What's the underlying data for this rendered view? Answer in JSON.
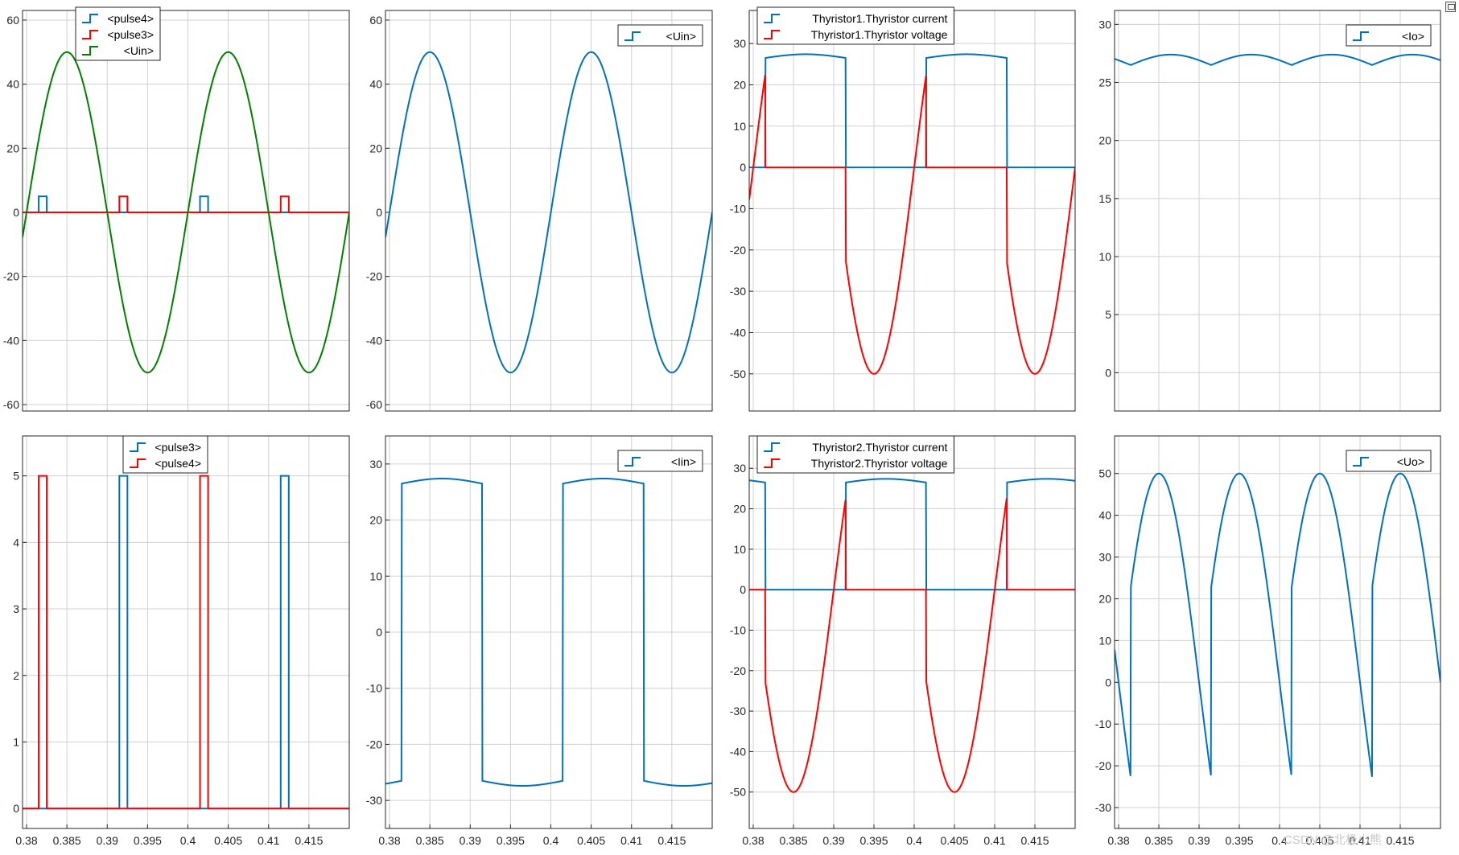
{
  "window": {
    "watermark": "CSDN @北极小熊"
  },
  "colors": {
    "blue": "#0072BD",
    "red": "#FF0000",
    "green": "#008000",
    "grid": "#d0d0d0",
    "axis": "#262626"
  },
  "chart_data": [
    {
      "id": "p1",
      "type": "line",
      "xlim": [
        0.3795,
        0.42
      ],
      "ylim": [
        -62,
        63
      ],
      "yticks": [
        -60,
        -40,
        -20,
        0,
        20,
        40,
        60
      ],
      "ytick_labels": [
        "-60",
        "-40",
        "-20",
        "0",
        "20",
        "40",
        "60"
      ],
      "grid": true,
      "legend_position": "top-left",
      "series": [
        {
          "name": "<pulse4>",
          "color": "blue",
          "kind": "pulse",
          "width": 0.001,
          "starts": [
            0.3815,
            0.4015
          ],
          "amp": 5
        },
        {
          "name": "<pulse3>",
          "color": "red",
          "kind": "pulse",
          "width": 0.001,
          "starts": [
            0.3915,
            0.4115
          ],
          "amp": 5
        },
        {
          "name": "<Uin>",
          "color": "green",
          "kind": "sine",
          "amp": 50,
          "freq": 50,
          "period": 0.02
        }
      ]
    },
    {
      "id": "p2",
      "type": "line",
      "xlim": [
        0.3795,
        0.42
      ],
      "ylim": [
        -62,
        63
      ],
      "yticks": [
        -60,
        -40,
        -20,
        0,
        20,
        40,
        60
      ],
      "ytick_labels": [
        "-60",
        "-40",
        "-20",
        "0",
        "20",
        "40",
        "60"
      ],
      "grid": true,
      "legend_position": "top-right",
      "series": [
        {
          "name": "<Uin>",
          "color": "blue",
          "kind": "sine",
          "amp": 50,
          "freq": 50
        }
      ]
    },
    {
      "id": "p3",
      "type": "line",
      "xlim": [
        0.3795,
        0.42
      ],
      "ylim": [
        -59,
        38
      ],
      "yticks": [
        -50,
        -40,
        -30,
        -20,
        -10,
        0,
        10,
        20,
        30
      ],
      "ytick_labels": [
        "-50",
        "-40",
        "-30",
        "-20",
        "-10",
        "0",
        "10",
        "20",
        "30"
      ],
      "grid": true,
      "legend_position": "top-left",
      "series": [
        {
          "name": "Thyristor1.Thyristor current",
          "color": "blue",
          "kind": "thy_current",
          "phase": 0
        },
        {
          "name": "Thyristor1.Thyristor voltage",
          "color": "red",
          "kind": "thy_voltage",
          "phase": 0
        }
      ]
    },
    {
      "id": "p4",
      "type": "line",
      "xlim": [
        0.3795,
        0.42
      ],
      "ylim": [
        -3.3,
        31.2
      ],
      "yticks": [
        0,
        5,
        10,
        15,
        20,
        25,
        30
      ],
      "ytick_labels": [
        "0",
        "5",
        "10",
        "15",
        "20",
        "25",
        "30"
      ],
      "grid": true,
      "legend_position": "top-right",
      "series": [
        {
          "name": "<Io>",
          "color": "blue",
          "kind": "io"
        }
      ]
    },
    {
      "id": "p5",
      "type": "line",
      "xlim": [
        0.3795,
        0.42
      ],
      "ylim": [
        -0.3,
        5.6
      ],
      "yticks": [
        0,
        1,
        2,
        3,
        4,
        5
      ],
      "ytick_labels": [
        "0",
        "1",
        "2",
        "3",
        "4",
        "5"
      ],
      "xticks": [
        0.38,
        0.385,
        0.39,
        0.395,
        0.4,
        0.405,
        0.41,
        0.415
      ],
      "xtick_labels": [
        "0.38",
        "0.385",
        "0.39",
        "0.395",
        "0.4",
        "0.405",
        "0.41",
        "0.415"
      ],
      "grid": true,
      "legend_position": "top-center",
      "series": [
        {
          "name": "<pulse3>",
          "color": "blue",
          "kind": "pulse",
          "width": 0.001,
          "starts": [
            0.3915,
            0.4115
          ],
          "amp": 5
        },
        {
          "name": "<pulse4>",
          "color": "red",
          "kind": "pulse",
          "width": 0.001,
          "starts": [
            0.3815,
            0.4015
          ],
          "amp": 5
        }
      ]
    },
    {
      "id": "p6",
      "type": "line",
      "xlim": [
        0.3795,
        0.42
      ],
      "ylim": [
        -35,
        35
      ],
      "yticks": [
        -30,
        -20,
        -10,
        0,
        10,
        20,
        30
      ],
      "ytick_labels": [
        "-30",
        "-20",
        "-10",
        "0",
        "10",
        "20",
        "30"
      ],
      "xticks": [
        0.38,
        0.385,
        0.39,
        0.395,
        0.4,
        0.405,
        0.41,
        0.415
      ],
      "xtick_labels": [
        "0.38",
        "0.385",
        "0.39",
        "0.395",
        "0.4",
        "0.405",
        "0.41",
        "0.415"
      ],
      "grid": true,
      "legend_position": "top-right",
      "series": [
        {
          "name": "<Iin>",
          "color": "blue",
          "kind": "iin"
        }
      ]
    },
    {
      "id": "p7",
      "type": "line",
      "xlim": [
        0.3795,
        0.42
      ],
      "ylim": [
        -59,
        38
      ],
      "yticks": [
        -50,
        -40,
        -30,
        -20,
        -10,
        0,
        10,
        20,
        30
      ],
      "ytick_labels": [
        "-50",
        "-40",
        "-30",
        "-20",
        "-10",
        "0",
        "10",
        "20",
        "30"
      ],
      "xticks": [
        0.38,
        0.385,
        0.39,
        0.395,
        0.4,
        0.405,
        0.41,
        0.415
      ],
      "xtick_labels": [
        "0.38",
        "0.385",
        "0.39",
        "0.395",
        "0.4",
        "0.405",
        "0.41",
        "0.415"
      ],
      "grid": true,
      "legend_position": "top-left",
      "series": [
        {
          "name": "Thyristor2.Thyristor current",
          "color": "blue",
          "kind": "thy_current",
          "phase": 0.01
        },
        {
          "name": "Thyristor2.Thyristor voltage",
          "color": "red",
          "kind": "thy_voltage",
          "phase": 0.01
        }
      ]
    },
    {
      "id": "p8",
      "type": "line",
      "xlim": [
        0.3795,
        0.42
      ],
      "ylim": [
        -35,
        59
      ],
      "yticks": [
        -30,
        -20,
        -10,
        0,
        10,
        20,
        30,
        40,
        50
      ],
      "ytick_labels": [
        "-30",
        "-20",
        "-10",
        "0",
        "10",
        "20",
        "30",
        "40",
        "50"
      ],
      "xticks": [
        0.38,
        0.385,
        0.39,
        0.395,
        0.4,
        0.405,
        0.41,
        0.415
      ],
      "xtick_labels": [
        "0.38",
        "0.385",
        "0.39",
        "0.395",
        "0.4",
        "0.405",
        "0.41",
        "0.415"
      ],
      "grid": true,
      "legend_position": "top-right",
      "series": [
        {
          "name": "<Uo>",
          "color": "blue",
          "kind": "uo"
        }
      ]
    }
  ]
}
